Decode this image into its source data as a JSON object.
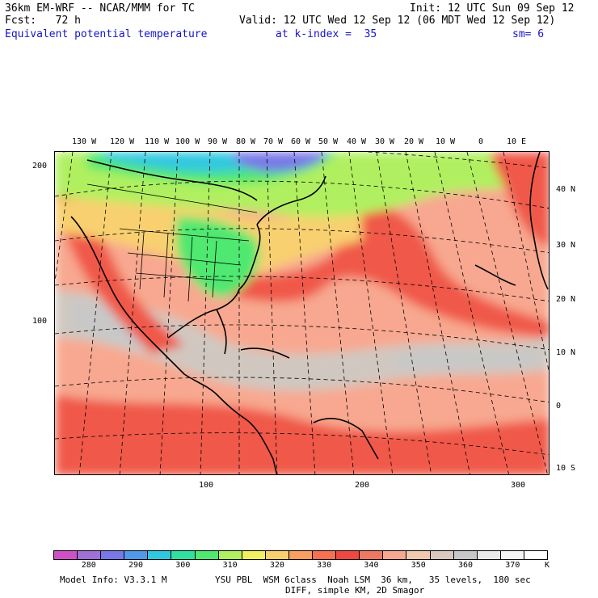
{
  "header": {
    "model": "36km EM-WRF -- NCAR/MMM for TC",
    "init": "Init: 12 UTC Sun 09 Sep 12",
    "fcst": "Fcst:   72 h",
    "valid": "Valid: 12 UTC Wed 12 Sep 12 (06 MDT Wed 12 Sep 12)",
    "field": "Equivalent potential temperature",
    "level": "at k-index =  35",
    "smooth": "sm= 6"
  },
  "map": {
    "lon_labels": [
      "130 W",
      "120 W",
      "110 W",
      "100 W",
      "90 W",
      "80 W",
      "70 W",
      "60 W",
      "50 W",
      "40 W",
      "30 W",
      "20 W",
      "10 W",
      "0",
      "10 E"
    ],
    "lat_labels": [
      "40 N",
      "30 N",
      "20 N",
      "10 N",
      "0",
      "10 S"
    ],
    "grid_y_labels": [
      "200",
      "100"
    ],
    "grid_x_labels": [
      "100",
      "200",
      "300"
    ]
  },
  "colorbar": {
    "labels": [
      "280",
      "290",
      "300",
      "310",
      "320",
      "330",
      "340",
      "350",
      "360",
      "370"
    ],
    "unit": "K",
    "colors": [
      "#d050c8",
      "#a070d8",
      "#7878e8",
      "#5098e8",
      "#30c8e0",
      "#30e0a0",
      "#50e870",
      "#b0f060",
      "#f0f060",
      "#f8d070",
      "#f8a060",
      "#f87050",
      "#f04840",
      "#f07860",
      "#f8a890",
      "#f0c8b0",
      "#d8c8c0",
      "#c8c8c8",
      "#e8e8e8",
      "#f4f4f4",
      "#ffffff"
    ]
  },
  "footer": {
    "info": "Model Info: V3.3.1 M",
    "physics": "YSU PBL  WSM 6class  Noah LSM  36 km,   35 levels,  180 sec",
    "diff": "DIFF, simple KM, 2D Smagor"
  }
}
